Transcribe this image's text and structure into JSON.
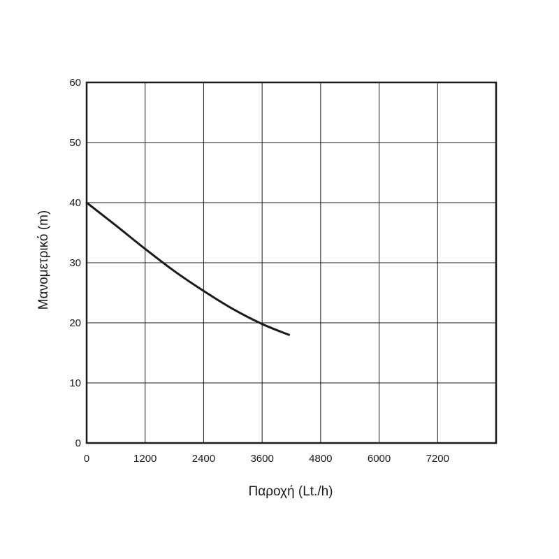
{
  "chart_data": {
    "type": "line",
    "xlabel": "Παροχή (Lt./h)",
    "ylabel": "Μανομετρικό  (m)",
    "xlim": [
      0,
      8400
    ],
    "ylim": [
      0,
      60
    ],
    "x_ticks": [
      "0",
      "1200",
      "2400",
      "3600",
      "4800",
      "6000",
      "7200"
    ],
    "y_ticks": [
      "0",
      "10",
      "20",
      "30",
      "40",
      "50",
      "60"
    ],
    "grid": true,
    "series": [
      {
        "x": [
          0,
          600,
          1200,
          1800,
          2400,
          3000,
          3600,
          4150
        ],
        "y": [
          40,
          36.2,
          32.3,
          28.6,
          25.3,
          22.3,
          19.8,
          18
        ]
      }
    ]
  },
  "colors": {
    "line": "#1a1a1a",
    "grid": "#1a1a1a",
    "background": "#ffffff"
  }
}
